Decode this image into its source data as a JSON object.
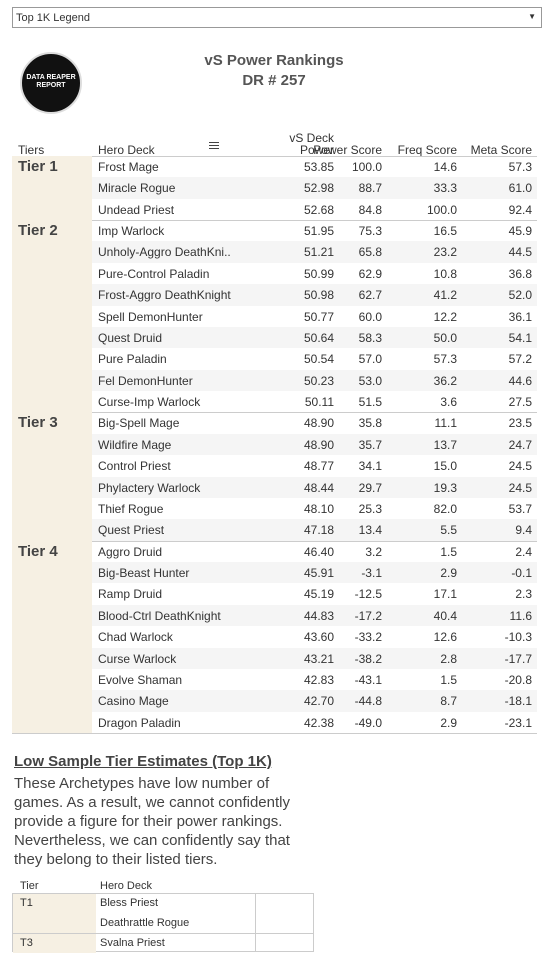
{
  "dropdown": "Top 1K Legend",
  "logo": "DATA REAPER REPORT",
  "header": {
    "title": "vS Power Rankings",
    "subtitle": "DR # 257"
  },
  "table": {
    "columns": [
      "Tiers",
      "Hero Deck",
      "vS Deck Power",
      "Power Score",
      "Freq Score",
      "Meta Score"
    ],
    "tiers": [
      {
        "name": "Tier 1",
        "rows": [
          [
            "Frost Mage",
            "53.85",
            "100.0",
            "14.6",
            "57.3"
          ],
          [
            "Miracle Rogue",
            "52.98",
            "88.7",
            "33.3",
            "61.0"
          ],
          [
            "Undead Priest",
            "52.68",
            "84.8",
            "100.0",
            "92.4"
          ]
        ]
      },
      {
        "name": "Tier 2",
        "rows": [
          [
            "Imp Warlock",
            "51.95",
            "75.3",
            "16.5",
            "45.9"
          ],
          [
            "Unholy-Aggro DeathKni..",
            "51.21",
            "65.8",
            "23.2",
            "44.5"
          ],
          [
            "Pure-Control Paladin",
            "50.99",
            "62.9",
            "10.8",
            "36.8"
          ],
          [
            "Frost-Aggro DeathKnight",
            "50.98",
            "62.7",
            "41.2",
            "52.0"
          ],
          [
            "Spell DemonHunter",
            "50.77",
            "60.0",
            "12.2",
            "36.1"
          ],
          [
            "Quest Druid",
            "50.64",
            "58.3",
            "50.0",
            "54.1"
          ],
          [
            "Pure Paladin",
            "50.54",
            "57.0",
            "57.3",
            "57.2"
          ],
          [
            "Fel DemonHunter",
            "50.23",
            "53.0",
            "36.2",
            "44.6"
          ],
          [
            "Curse-Imp Warlock",
            "50.11",
            "51.5",
            "3.6",
            "27.5"
          ]
        ]
      },
      {
        "name": "Tier 3",
        "rows": [
          [
            "Big-Spell Mage",
            "48.90",
            "35.8",
            "11.1",
            "23.5"
          ],
          [
            "Wildfire Mage",
            "48.90",
            "35.7",
            "13.7",
            "24.7"
          ],
          [
            "Control Priest",
            "48.77",
            "34.1",
            "15.0",
            "24.5"
          ],
          [
            "Phylactery Warlock",
            "48.44",
            "29.7",
            "19.3",
            "24.5"
          ],
          [
            "Thief Rogue",
            "48.10",
            "25.3",
            "82.0",
            "53.7"
          ],
          [
            "Quest Priest",
            "47.18",
            "13.4",
            "5.5",
            "9.4"
          ]
        ]
      },
      {
        "name": "Tier 4",
        "rows": [
          [
            "Aggro Druid",
            "46.40",
            "3.2",
            "1.5",
            "2.4"
          ],
          [
            "Big-Beast Hunter",
            "45.91",
            "-3.1",
            "2.9",
            "-0.1"
          ],
          [
            "Ramp Druid",
            "45.19",
            "-12.5",
            "17.1",
            "2.3"
          ],
          [
            "Blood-Ctrl DeathKnight",
            "44.83",
            "-17.2",
            "40.4",
            "11.6"
          ],
          [
            "Chad Warlock",
            "43.60",
            "-33.2",
            "12.6",
            "-10.3"
          ],
          [
            "Curse Warlock",
            "43.21",
            "-38.2",
            "2.8",
            "-17.7"
          ],
          [
            "Evolve Shaman",
            "42.83",
            "-43.1",
            "1.5",
            "-20.8"
          ],
          [
            "Casino Mage",
            "42.70",
            "-44.8",
            "8.7",
            "-18.1"
          ],
          [
            "Dragon Paladin",
            "42.38",
            "-49.0",
            "2.9",
            "-23.1"
          ]
        ]
      }
    ]
  },
  "low_sample": {
    "title": "Low Sample Tier Estimates (Top 1K)",
    "text": "These Archetypes have low number of games. As a result, we cannot confidently provide a figure for their power rankings. Nevertheless, we can confidently say that they belong to their listed tiers.",
    "columns": [
      "Tier",
      "Hero Deck"
    ],
    "groups": [
      {
        "tier": "T1",
        "decks": [
          "Bless Priest",
          "Deathrattle Rogue"
        ]
      },
      {
        "tier": "T3",
        "decks": [
          "Svalna Priest"
        ]
      }
    ]
  }
}
